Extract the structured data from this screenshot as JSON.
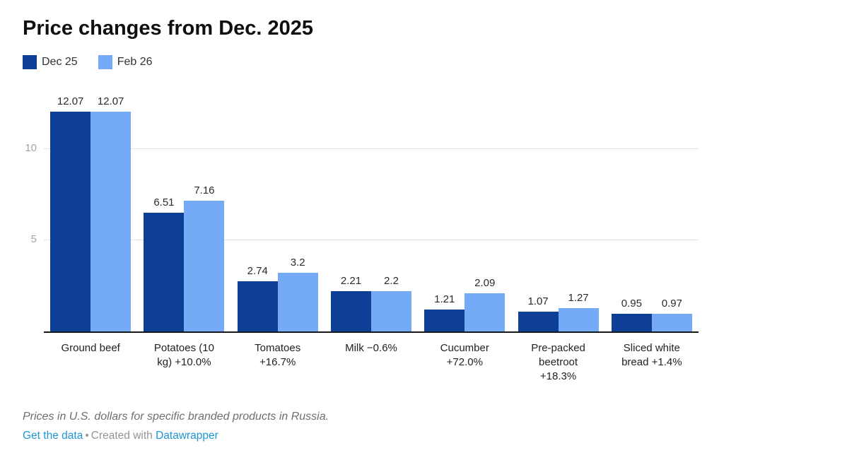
{
  "header": {
    "title": "Price changes from Dec. 2025"
  },
  "legend": {
    "items": [
      {
        "label": "Dec 25",
        "color": "#0c3f95"
      },
      {
        "label": "Feb 26",
        "color": "#75aaf7"
      }
    ]
  },
  "chart_data": {
    "type": "bar",
    "title": "Price changes from Dec. 2025",
    "categories": [
      "Ground beef",
      "Potatoes (10 kg) +10.0%",
      "Tomatoes +16.7%",
      "Milk −0.6%",
      "Cucumber +72.0%",
      "Pre-packed beetroot +18.3%",
      "Sliced white bread +1.4%"
    ],
    "series": [
      {
        "name": "Dec 25",
        "color": "#0c3f95",
        "values": [
          12.07,
          6.51,
          2.74,
          2.21,
          1.21,
          1.07,
          0.95
        ]
      },
      {
        "name": "Feb 26",
        "color": "#75aaf7",
        "values": [
          12.07,
          7.16,
          3.2,
          2.2,
          2.09,
          1.27,
          0.97
        ]
      }
    ],
    "xlabel": "",
    "ylabel": "",
    "y_ticks": [
      5,
      10
    ],
    "ylim": [
      0,
      13.6
    ],
    "grid": true,
    "legend_position": "top-left",
    "value_labels_shown": true
  },
  "footer": {
    "note": "Prices in U.S. dollars for specific branded products in Russia.",
    "get_data_label": "Get the data",
    "separator": "•",
    "created_with": "Created with",
    "datawrapper_label": "Datawrapper"
  },
  "colors": {
    "series_dark": "#0c3f95",
    "series_light": "#75aaf7",
    "gridline": "#e2e2e2",
    "baseline": "#181818",
    "tick_text": "#a3a3a3",
    "link_blue": "#1d95d3",
    "note_gray": "#6e6e6e"
  }
}
